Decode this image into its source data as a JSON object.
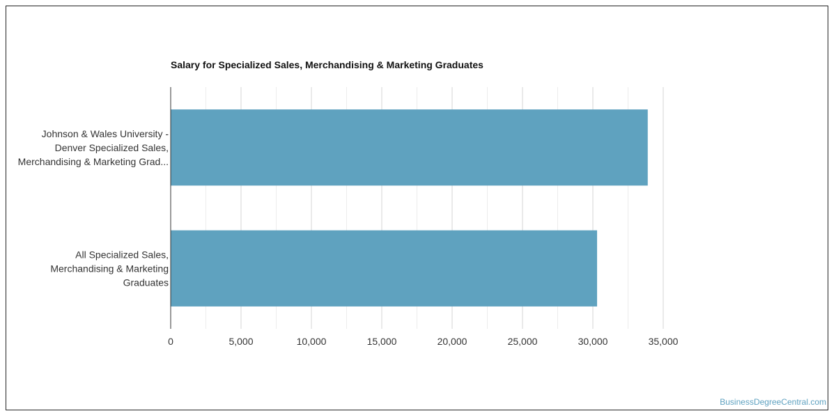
{
  "chart_data": {
    "type": "bar",
    "orientation": "horizontal",
    "title": "Salary for Specialized Sales, Merchandising & Marketing Graduates",
    "categories": [
      [
        "Johnson & Wales University -",
        "Denver Specialized Sales,",
        "Merchandising & Marketing Grad..."
      ],
      [
        "All Specialized Sales,",
        "Merchandising & Marketing",
        "Graduates"
      ]
    ],
    "values": [
      33900,
      30300
    ],
    "xlim": [
      0,
      35000
    ],
    "ticks": [
      0,
      5000,
      10000,
      15000,
      20000,
      25000,
      30000,
      35000
    ],
    "tick_labels": [
      "0",
      "5,000",
      "10,000",
      "15,000",
      "20,000",
      "25,000",
      "30,000",
      "35,000"
    ],
    "bar_color": "#5fa2bf",
    "grid": true
  },
  "watermark": "BusinessDegreeCentral.com"
}
